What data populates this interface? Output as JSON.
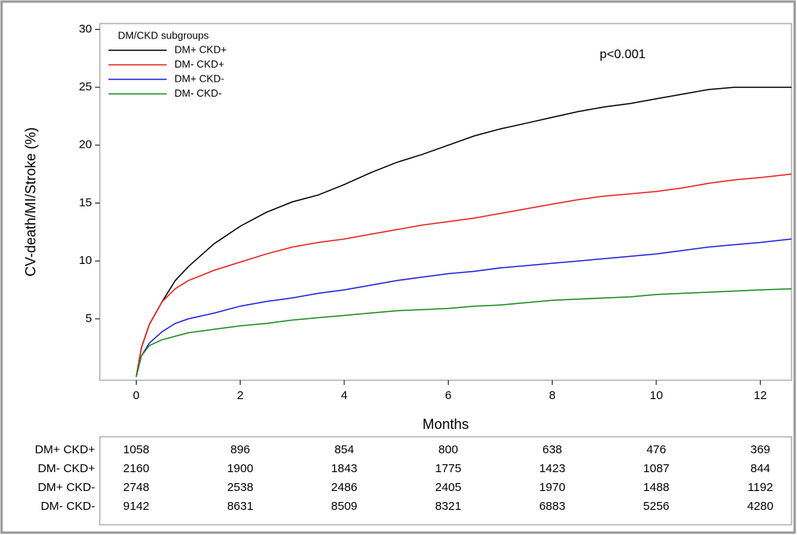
{
  "chart_data": {
    "type": "line",
    "y_label": "CV-death/MI/Stroke (%)",
    "x_label": "Months",
    "annotation": "p<0.001",
    "legend_title": "DM/CKD subgroups",
    "legend_position": "upper-left",
    "x": [
      0,
      0.1,
      0.25,
      0.5,
      0.75,
      1,
      1.5,
      2,
      2.5,
      3,
      3.5,
      4,
      4.5,
      5,
      5.5,
      6,
      6.5,
      7,
      7.5,
      8,
      8.5,
      9,
      9.5,
      10,
      10.5,
      11,
      11.5,
      12,
      12.6
    ],
    "series": [
      {
        "name": "DM+ CKD+",
        "color": "#000000",
        "values": [
          0,
          2.5,
          4.5,
          6.5,
          8.3,
          9.5,
          11.5,
          13,
          14.2,
          15.1,
          15.7,
          16.6,
          17.6,
          18.5,
          19.2,
          20,
          20.8,
          21.4,
          21.9,
          22.4,
          22.9,
          23.3,
          23.6,
          24,
          24.4,
          24.8,
          25,
          25,
          25
        ]
      },
      {
        "name": "DM- CKD+",
        "color": "#e8201c",
        "values": [
          0,
          2.5,
          4.5,
          6.5,
          7.6,
          8.3,
          9.2,
          9.9,
          10.6,
          11.2,
          11.6,
          11.9,
          12.3,
          12.7,
          13.1,
          13.4,
          13.7,
          14.1,
          14.5,
          14.9,
          15.3,
          15.6,
          15.8,
          16,
          16.3,
          16.7,
          17,
          17.2,
          17.5
        ]
      },
      {
        "name": "DM+ CKD-",
        "color": "#1f1fe0",
        "values": [
          0,
          1.8,
          2.9,
          3.9,
          4.6,
          5,
          5.5,
          6.1,
          6.5,
          6.8,
          7.2,
          7.5,
          7.9,
          8.3,
          8.6,
          8.9,
          9.1,
          9.4,
          9.6,
          9.8,
          10,
          10.2,
          10.4,
          10.6,
          10.9,
          11.2,
          11.4,
          11.6,
          11.9
        ]
      },
      {
        "name": "DM- CKD-",
        "color": "#1a8a1a",
        "values": [
          0,
          1.8,
          2.7,
          3.2,
          3.5,
          3.8,
          4.1,
          4.4,
          4.6,
          4.9,
          5.1,
          5.3,
          5.5,
          5.7,
          5.8,
          5.9,
          6.1,
          6.2,
          6.4,
          6.6,
          6.7,
          6.8,
          6.9,
          7.1,
          7.2,
          7.3,
          7.4,
          7.5,
          7.6
        ]
      }
    ],
    "xlim": [
      -0.7,
      12.6
    ],
    "ylim": [
      -0.3,
      30.5
    ],
    "xticks": [
      0,
      2,
      4,
      6,
      8,
      10,
      12
    ],
    "yticks": [
      5,
      10,
      15,
      20,
      25,
      30
    ]
  },
  "risk_table": {
    "rows": [
      {
        "label": "DM+ CKD+",
        "values": [
          1058,
          896,
          854,
          800,
          638,
          476,
          369
        ]
      },
      {
        "label": "DM- CKD+",
        "values": [
          2160,
          1900,
          1843,
          1775,
          1423,
          1087,
          844
        ]
      },
      {
        "label": "DM+ CKD-",
        "values": [
          2748,
          2538,
          2486,
          2405,
          1970,
          1488,
          1192
        ]
      },
      {
        "label": "DM- CKD-",
        "values": [
          9142,
          8631,
          8509,
          8321,
          6883,
          5256,
          4280
        ]
      }
    ]
  }
}
